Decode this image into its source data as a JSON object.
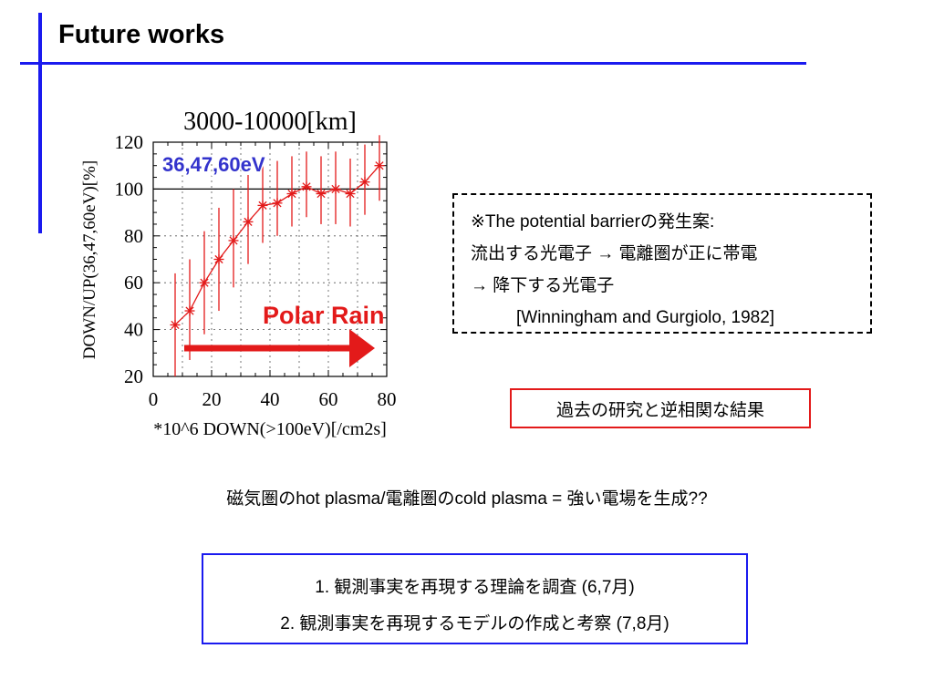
{
  "slide": {
    "title": "Future works"
  },
  "chart_data": {
    "type": "scatter",
    "title": "3000-10000[km]",
    "xlabel": "*10^6 DOWN(>100eV)[/cm2s]",
    "ylabel": "DOWN/UP(36,47,60eV)[%]",
    "xlim": [
      0,
      80
    ],
    "ylim": [
      20,
      120
    ],
    "x_ticks": [
      "0",
      "20",
      "40",
      "60",
      "80"
    ],
    "y_ticks": [
      "20",
      "40",
      "60",
      "80",
      "100",
      "120"
    ],
    "grid": true,
    "series": [
      {
        "name": "36,47,60eV",
        "color": "#e31a1a",
        "marker": "asterisk",
        "x": [
          7.5,
          12.5,
          17.5,
          22.5,
          27.5,
          32.5,
          37.5,
          42.5,
          47.5,
          52.5,
          57.5,
          62.5,
          67.5,
          72.5,
          77.5
        ],
        "y": [
          42,
          48,
          60,
          70,
          78,
          86,
          93,
          94,
          98,
          101,
          98,
          100,
          98,
          103,
          110
        ],
        "y_low": [
          18,
          27,
          38,
          48,
          58,
          68,
          77,
          80,
          84,
          88,
          85,
          85,
          84,
          89,
          95
        ],
        "y_high": [
          64,
          70,
          82,
          92,
          100,
          106,
          110,
          112,
          114,
          116,
          114,
          116,
          113,
          119,
          123
        ]
      }
    ],
    "reference_line": 100,
    "annotations": {
      "series_label": "36,47,60eV",
      "arrow_label": "Polar Rain"
    }
  },
  "note_box": {
    "line1": "※The potential barrierの発生案:",
    "line2": "流出する光電子 → 電離圏が正に帯電",
    "line3": "→ 降下する光電子",
    "reference": "[Winningham and Gurgiolo, 1982]"
  },
  "result_box": {
    "text": "過去の研究と逆相関な結果"
  },
  "question": {
    "text": "磁気圏のhot plasma/電離圏のcold plasma = 強い電場を生成??"
  },
  "plan_box": {
    "item1": "1. 観測事実を再現する理論を調査 (6,7月)",
    "item2": "2. 観測事実を再現するモデルの作成と考察 (7,8月)"
  },
  "colors": {
    "accent_blue": "#1a1aef",
    "series_red": "#e31a1a",
    "label_blue": "#3333cc"
  }
}
